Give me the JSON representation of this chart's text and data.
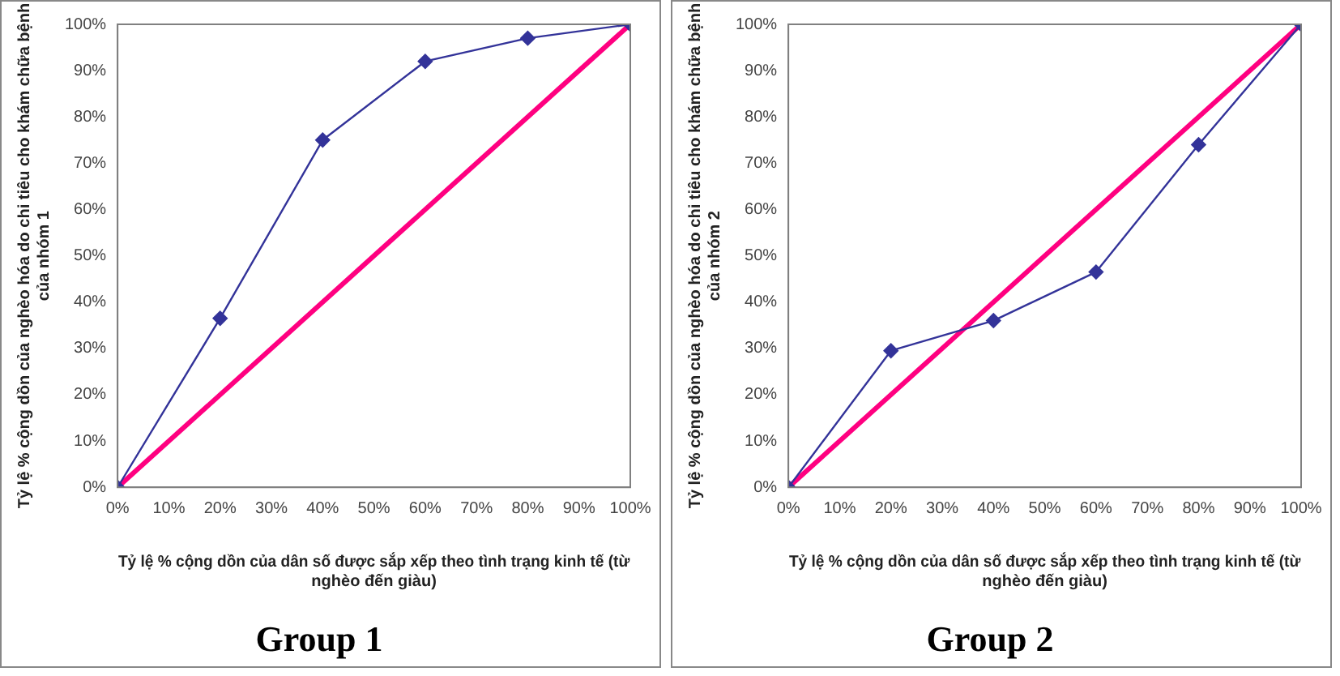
{
  "chart_data": [
    {
      "type": "line",
      "title": "Group 1",
      "xlabel": "Tỷ lệ % cộng dồn của dân số được sắp xếp theo tình trạng kinh tế (từ nghèo đến giàu)",
      "ylabel": "Tỷ lệ % cộng dồn của nghèo hóa do chi tiêu cho khám chữa bệnh của nhóm 1",
      "grid": false,
      "legend": false,
      "xlim": [
        0,
        100
      ],
      "ylim": [
        0,
        100
      ],
      "xticks": [
        {
          "value": 0,
          "label": "0%"
        },
        {
          "value": 10,
          "label": "10%"
        },
        {
          "value": 20,
          "label": "20%"
        },
        {
          "value": 30,
          "label": "30%"
        },
        {
          "value": 40,
          "label": "40%"
        },
        {
          "value": 50,
          "label": "50%"
        },
        {
          "value": 60,
          "label": "60%"
        },
        {
          "value": 70,
          "label": "70%"
        },
        {
          "value": 80,
          "label": "80%"
        },
        {
          "value": 90,
          "label": "90%"
        },
        {
          "value": 100,
          "label": "100%"
        }
      ],
      "yticks": [
        {
          "value": 0,
          "label": "0%"
        },
        {
          "value": 10,
          "label": "10%"
        },
        {
          "value": 20,
          "label": "20%"
        },
        {
          "value": 30,
          "label": "30%"
        },
        {
          "value": 40,
          "label": "40%"
        },
        {
          "value": 50,
          "label": "50%"
        },
        {
          "value": 60,
          "label": "60%"
        },
        {
          "value": 70,
          "label": "70%"
        },
        {
          "value": 80,
          "label": "80%"
        },
        {
          "value": 90,
          "label": "90%"
        },
        {
          "value": 100,
          "label": "100%"
        }
      ],
      "series": [
        {
          "color": "#333399",
          "marker": "diamond",
          "x": [
            0,
            20,
            40,
            60,
            80,
            100
          ],
          "values": [
            0,
            36.5,
            75,
            92,
            97,
            100
          ]
        },
        {
          "color": "#ff0080",
          "marker": "none",
          "x": [
            0,
            100
          ],
          "values": [
            0,
            100
          ]
        }
      ]
    },
    {
      "type": "line",
      "title": "Group 2",
      "xlabel": "Tỷ lệ % cộng dồn của dân số được sắp xếp theo tình trạng kinh tế (từ nghèo đến giàu)",
      "ylabel": "Tỷ lệ % cộng dồn của nghèo hóa do chi tiêu cho khám chữa bệnh của nhóm 2",
      "grid": false,
      "legend": false,
      "xlim": [
        0,
        100
      ],
      "ylim": [
        0,
        100
      ],
      "xticks": [
        {
          "value": 0,
          "label": "0%"
        },
        {
          "value": 10,
          "label": "10%"
        },
        {
          "value": 20,
          "label": "20%"
        },
        {
          "value": 30,
          "label": "30%"
        },
        {
          "value": 40,
          "label": "40%"
        },
        {
          "value": 50,
          "label": "50%"
        },
        {
          "value": 60,
          "label": "60%"
        },
        {
          "value": 70,
          "label": "70%"
        },
        {
          "value": 80,
          "label": "80%"
        },
        {
          "value": 90,
          "label": "90%"
        },
        {
          "value": 100,
          "label": "100%"
        }
      ],
      "yticks": [
        {
          "value": 0,
          "label": "0%"
        },
        {
          "value": 10,
          "label": "10%"
        },
        {
          "value": 20,
          "label": "20%"
        },
        {
          "value": 30,
          "label": "30%"
        },
        {
          "value": 40,
          "label": "40%"
        },
        {
          "value": 50,
          "label": "50%"
        },
        {
          "value": 60,
          "label": "60%"
        },
        {
          "value": 70,
          "label": "70%"
        },
        {
          "value": 80,
          "label": "80%"
        },
        {
          "value": 90,
          "label": "90%"
        },
        {
          "value": 100,
          "label": "100%"
        }
      ],
      "series": [
        {
          "color": "#333399",
          "marker": "diamond",
          "x": [
            0,
            20,
            40,
            60,
            80,
            100
          ],
          "values": [
            0,
            29.5,
            36,
            46.5,
            74,
            100
          ]
        },
        {
          "color": "#ff0080",
          "marker": "none",
          "x": [
            0,
            100
          ],
          "values": [
            0,
            100
          ]
        }
      ]
    }
  ]
}
